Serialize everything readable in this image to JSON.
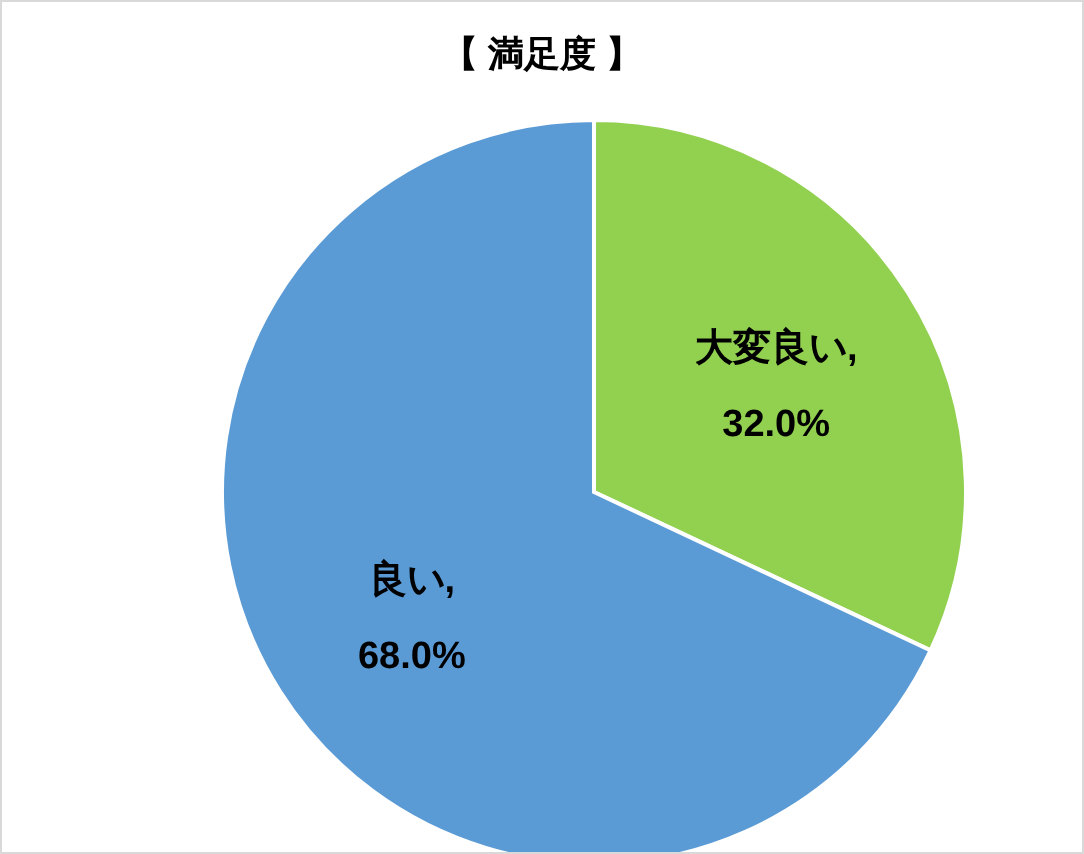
{
  "chart_data": {
    "type": "pie",
    "title": "【 満足度 】",
    "categories": [
      "大変良い",
      "良い"
    ],
    "values": [
      32.0,
      68.0
    ],
    "colors": [
      "#92d050",
      "#5b9bd5"
    ],
    "value_labels": [
      ",\n32.0%",
      ",\n68.0%"
    ],
    "legend": false
  }
}
